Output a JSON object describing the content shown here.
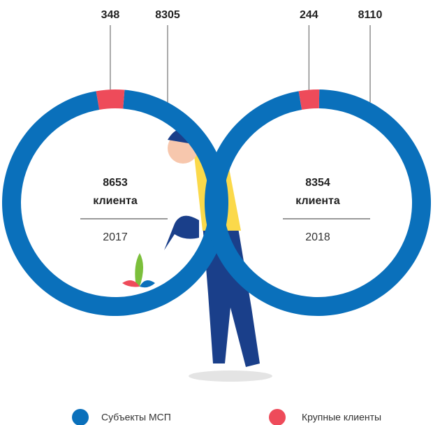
{
  "legend": {
    "labels": [
      "Субъекты МСП",
      "Крупные клиенты"
    ],
    "colors": [
      "#0a70bb",
      "#ee4b5a"
    ]
  },
  "chart_data": [
    {
      "type": "pie",
      "values": [
        8305,
        348
      ],
      "center_value": 8653,
      "center_label": "клиента",
      "year": "2017"
    },
    {
      "type": "pie",
      "values": [
        8110,
        244
      ],
      "center_value": 8354,
      "center_label": "клиента",
      "year": "2018"
    }
  ]
}
